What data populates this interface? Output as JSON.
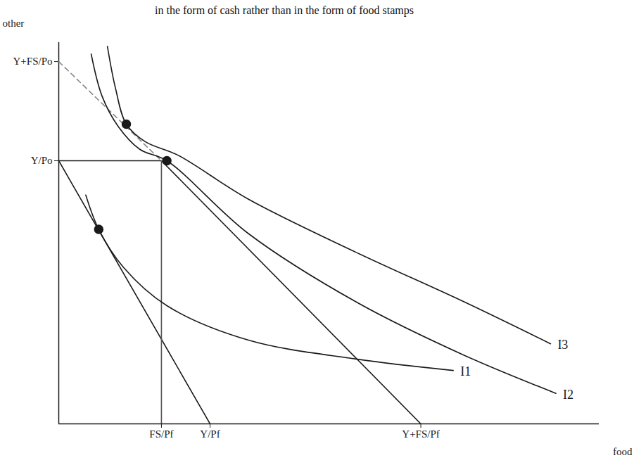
{
  "chart_data": {
    "type": "line",
    "title": "in the form of cash rather than in the form of food stamps",
    "x_label": "food",
    "y_label": "other",
    "xlim": [
      0,
      100
    ],
    "ylim": [
      0,
      100
    ],
    "xticks": [
      {
        "value": 19,
        "label": "FS/Pf"
      },
      {
        "value": 28,
        "label": "Y/Pf"
      },
      {
        "value": 67,
        "label": "Y+FS/Pf"
      }
    ],
    "yticks": [
      {
        "value": 69,
        "label": "Y/Po"
      },
      {
        "value": 95,
        "label": "Y+FS/Po"
      }
    ],
    "grid": false,
    "color": "#1a1a1a",
    "series": [
      {
        "type": "line",
        "line_style": "solid",
        "color": "#1a1a1a",
        "x": [
          0,
          28
        ],
        "values": [
          69,
          0
        ]
      },
      {
        "type": "line",
        "line_style": "solid",
        "color": "#1a1a1a",
        "x": [
          0,
          19,
          67
        ],
        "values": [
          69,
          69,
          0
        ]
      },
      {
        "type": "line",
        "line_style": "dashed",
        "color": "#888888",
        "x": [
          0,
          19
        ],
        "values": [
          95,
          69
        ]
      },
      {
        "type": "line",
        "line_style": "solid",
        "color": "#555555",
        "x": [
          19,
          19
        ],
        "values": [
          0,
          69
        ]
      },
      {
        "name": "I1",
        "type": "curve",
        "line_style": "solid",
        "color": "#1a1a1a",
        "x": [
          5,
          7.4,
          12,
          20,
          35,
          55,
          73
        ],
        "values": [
          60,
          51,
          41,
          31,
          22,
          17,
          14
        ]
      },
      {
        "name": "I2",
        "type": "curve",
        "line_style": "solid",
        "color": "#1a1a1a",
        "x": [
          6,
          8,
          11,
          15,
          20,
          35,
          55,
          75,
          92
        ],
        "values": [
          97,
          86,
          78,
          72,
          69,
          50,
          32,
          18,
          8
        ]
      },
      {
        "name": "I3",
        "type": "curve",
        "line_style": "solid",
        "color": "#1a1a1a",
        "x": [
          9,
          10.5,
          12.5,
          16,
          22,
          35,
          55,
          75,
          91
        ],
        "values": [
          99,
          88,
          78.6,
          74,
          70.5,
          59,
          45,
          32,
          21
        ]
      },
      {
        "type": "scatter",
        "marker": "circle",
        "color": "#1a1a1a",
        "x": [
          7.4,
          20,
          12.5
        ],
        "values": [
          51,
          69,
          78.6
        ]
      }
    ]
  }
}
